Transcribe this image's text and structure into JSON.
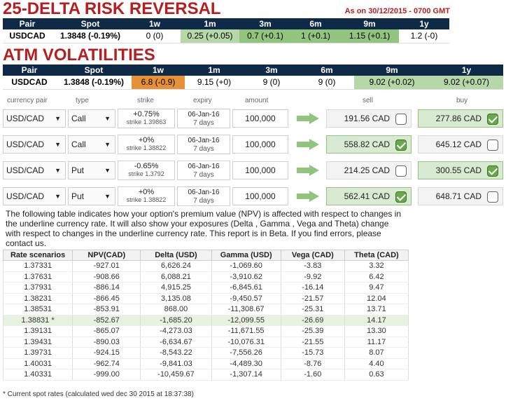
{
  "risk_reversal": {
    "title": "25-DELTA RISK REVERSAL",
    "as_of": "As on 30/12/2015 - 0700 GMT",
    "headers": [
      "Pair",
      "Spot",
      "1w",
      "1m",
      "3m",
      "6m",
      "9m",
      "1y"
    ],
    "row": [
      "USDCAD",
      "1.3848 (-0.19%)",
      "0 (0)",
      "0.25 (+0.05)",
      "0.7 (+0.1)",
      "1 (+0.1)",
      "1.15 (+0.1)",
      "1.2 (-0)"
    ]
  },
  "atm": {
    "title": "ATM VOLATILITIES",
    "headers": [
      "Pair",
      "Spot",
      "1w",
      "1m",
      "3m",
      "6m",
      "9m",
      "1y"
    ],
    "row": [
      "USDCAD",
      "1.3848 (-0.19%)",
      "6.8 (-0.9)",
      "9.15 (+0)",
      "9 (0)",
      "9 (0)",
      "9.02 (+0.02)",
      "9.02 (+0.07)"
    ]
  },
  "calculator": {
    "headers": {
      "pair": "currency pair",
      "type": "type",
      "strike": "strike",
      "expiry": "expiry",
      "amount": "amount",
      "sell": "sell",
      "buy": "buy"
    },
    "rows": [
      {
        "pair": "USD/CAD",
        "type": "Call",
        "strike": "+0.75%",
        "strike_sub": "strike 1.39863",
        "expiry": "06-Jan-16",
        "days": "7 days",
        "amount": "100,000",
        "sell": "191.56 CAD",
        "buy": "277.86 CAD"
      },
      {
        "pair": "USD/CAD",
        "type": "Call",
        "strike": "+0%",
        "strike_sub": "strike 1.38822",
        "expiry": "06-Jan-16",
        "days": "7 days",
        "amount": "100,000",
        "sell": "558.82 CAD",
        "buy": "645.12 CAD"
      },
      {
        "pair": "USD/CAD",
        "type": "Put",
        "strike": "-0.65%",
        "strike_sub": "strike 1.3792",
        "expiry": "06-Jan-16",
        "days": "7 days",
        "amount": "100,000",
        "sell": "214.25 CAD",
        "buy": "300.55 CAD"
      },
      {
        "pair": "USD/CAD",
        "type": "Put",
        "strike": "+0%",
        "strike_sub": "strike 1.38822",
        "expiry": "06-Jan-16",
        "days": "7 days",
        "amount": "100,000",
        "sell": "562.41 CAD",
        "buy": "648.71 CAD"
      }
    ],
    "dropdown_arrow": "▼"
  },
  "note": "The following table indicates how your option's premium value (NPV) is affected with respect to changes in the underline currency rate. It will also show your exposures (Delta , Gamma , Vega and Theta) change with respect to changes in the underline currency rate. This report is in Beta. If you find errors, please contact us.",
  "scenarios": {
    "headers": [
      "Rate scenarios",
      "NPV(CAD)",
      "Delta (USD)",
      "Gamma (USD)",
      "Vega (CAD)",
      "Theta (CAD)"
    ],
    "rows": [
      [
        "1.37331",
        "-927.01",
        "6,626.24",
        "-1,069.60",
        "-3.83",
        "3.32"
      ],
      [
        "1.37631",
        "-908.66",
        "6,088.21",
        "-3,910.62",
        "-9.92",
        "6.42"
      ],
      [
        "1.37931",
        "-886.14",
        "4,915.25",
        "-6,845.61",
        "-16.14",
        "9.47"
      ],
      [
        "1.38231",
        "-866.45",
        "3,135.08",
        "-9,450.57",
        "-21.57",
        "12.04"
      ],
      [
        "1.38531",
        "-853.91",
        "868.00",
        "-11,308.67",
        "-25.31",
        "13.71"
      ],
      [
        "1.38831 *",
        "-852.67",
        "-1,685.20",
        "-12,099.55",
        "-26.69",
        "14.17"
      ],
      [
        "1.39131",
        "-865.07",
        "-4,273.03",
        "-11,671.55",
        "-25.39",
        "13.30"
      ],
      [
        "1.39431",
        "-890.03",
        "-6,634.67",
        "-10,076.31",
        "-21.55",
        "11.17"
      ],
      [
        "1.39731",
        "-924.15",
        "-8,543.22",
        "-7,556.26",
        "-15.73",
        "8.07"
      ],
      [
        "1.40031",
        "-962.74",
        "-9,841.03",
        "-4,489.30",
        "-8.76",
        "4.40"
      ],
      [
        "1.40331",
        "-999.00",
        "-10,459.67",
        "-1,307.14",
        "-1.60",
        "0.63"
      ]
    ]
  },
  "footnote": "* Current spot rates (calculated wed dec 30 2015 at 18:37:38)"
}
